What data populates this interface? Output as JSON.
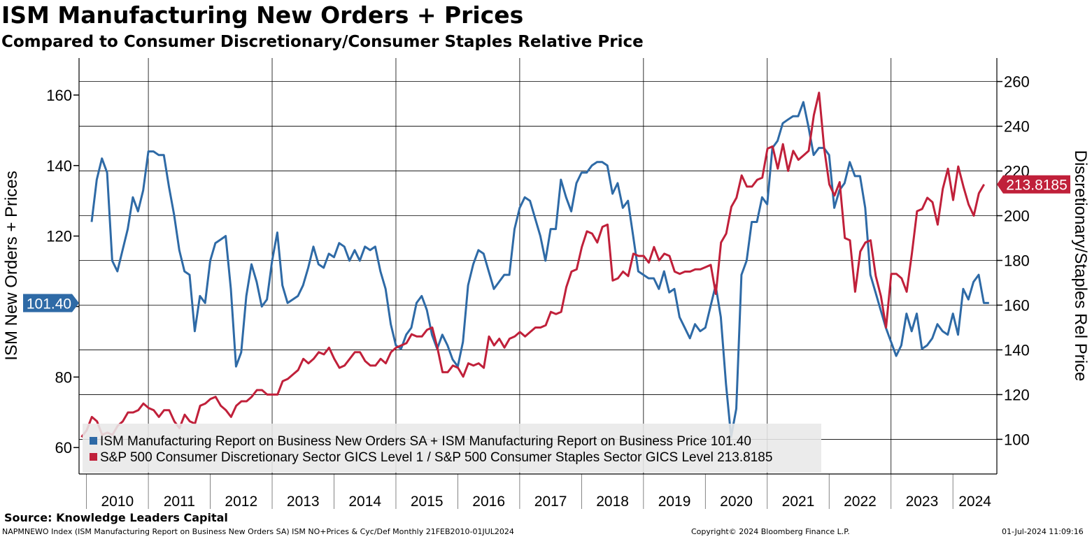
{
  "header": {
    "title": "ISM Manufacturing New Orders + Prices",
    "subtitle": "Compared to Consumer Discretionary/Consumer Staples Relative Price"
  },
  "footer": {
    "source": "Source: Knowledge Leaders Capital",
    "index_info": "NAPMNEWO Index (ISM Manufacturing Report on Business New Orders SA) ISM NO+Prices & Cyc/Def  Monthly 21FEB2010-01JUL2024",
    "copyright": "Copyright© 2024 Bloomberg Finance L.P.",
    "timestamp": "01-Jul-2024 11:09:16"
  },
  "colors": {
    "series1": "#2e6aa6",
    "series2": "#c0203a",
    "grid": "#000000",
    "legend_bg": "#e8e8e8"
  },
  "chart_data": {
    "type": "line",
    "x_range": [
      2009.88,
      2024.71
    ],
    "x_ticks": [
      "2010",
      "2011",
      "2012",
      "2013",
      "2014",
      "2015",
      "2016",
      "2017",
      "2018",
      "2019",
      "2020",
      "2021",
      "2022",
      "2023",
      "2024"
    ],
    "y_left": {
      "label": "ISM New Orders + Prices",
      "range": [
        52.5,
        170.5
      ],
      "ticks": [
        60,
        80,
        100,
        120,
        140,
        160
      ]
    },
    "y_right": {
      "label": "Discretionary/Staples Rel Price",
      "range": [
        84.5,
        270.5
      ],
      "ticks": [
        100,
        120,
        140,
        160,
        180,
        200,
        220,
        240,
        260
      ]
    },
    "series": [
      {
        "name": "ISM Manufacturing Report on Business New Orders SA + ISM Manufacturing Report on Business Price",
        "last_value": "101.40",
        "axis": "left",
        "start": 2010.083,
        "step": 0.083333,
        "values": [
          124,
          136,
          142,
          138,
          113,
          110,
          116,
          122,
          131,
          127,
          133,
          144,
          144,
          143,
          143,
          134,
          126,
          116,
          110,
          109,
          93,
          103,
          101,
          113,
          118,
          119,
          120,
          105,
          83,
          87,
          103,
          112,
          107,
          100,
          102,
          113,
          121,
          106,
          101,
          102,
          103,
          106,
          111,
          117,
          112,
          111,
          115,
          114,
          118,
          117,
          113,
          116,
          113,
          117,
          116,
          117,
          110,
          105,
          95,
          89,
          88,
          92,
          94,
          101,
          103,
          99,
          92,
          88,
          92,
          89,
          85,
          83,
          90,
          106,
          112,
          116,
          115,
          110,
          105,
          107,
          109,
          109,
          122,
          128,
          131,
          130,
          125,
          120,
          113,
          122,
          122,
          136,
          131,
          127,
          135,
          138,
          138,
          140,
          141,
          141,
          140,
          132,
          135,
          128,
          130,
          120,
          110,
          109,
          108,
          108,
          105,
          110,
          104,
          105,
          97,
          94,
          91,
          95,
          93,
          94,
          100,
          106,
          97,
          78,
          63,
          71,
          109,
          113,
          124,
          124,
          131,
          129,
          145,
          147,
          152,
          153,
          154,
          154,
          158,
          151,
          143,
          145,
          145,
          143,
          128,
          133,
          135,
          141,
          137,
          137,
          128,
          109,
          104,
          99,
          94,
          90,
          86,
          89,
          98,
          93,
          98,
          88,
          89,
          91,
          95,
          93,
          92,
          98,
          92,
          105,
          102,
          107,
          109,
          101,
          101
        ]
      },
      {
        "name": "S&P 500 Consumer Discretionary Sector GICS Level 1 / S&P 500 Consumer Staples Sector GICS Level",
        "last_value": "213.8185",
        "axis": "right",
        "start": 2009.92,
        "step": 0.083333,
        "values": [
          101,
          104,
          110,
          108,
          102,
          103,
          102,
          106,
          108,
          112,
          112,
          113,
          116,
          114,
          113,
          110,
          113,
          113,
          108,
          105,
          111,
          108,
          107,
          115,
          116,
          118,
          119,
          115,
          113,
          110,
          115,
          117,
          117,
          119,
          122,
          122,
          120,
          120,
          120,
          126,
          127,
          129,
          131,
          136,
          134,
          136,
          139,
          138,
          141,
          136,
          132,
          133,
          136,
          139,
          139,
          135,
          133,
          133,
          136,
          134,
          139,
          141,
          142,
          143,
          147,
          146,
          146,
          149,
          150,
          141,
          130,
          130,
          133,
          132,
          128,
          134,
          133,
          134,
          132,
          146,
          142,
          145,
          141,
          145,
          146,
          148,
          146,
          148,
          150,
          150,
          151,
          157,
          156,
          157,
          168,
          175,
          176,
          186,
          193,
          192,
          188,
          195,
          196,
          171,
          172,
          175,
          173,
          183,
          182,
          182,
          179,
          186,
          180,
          183,
          182,
          175,
          174,
          175,
          175,
          176,
          176,
          177,
          178,
          165,
          188,
          192,
          204,
          208,
          218,
          213,
          213,
          216,
          217,
          230,
          231,
          221,
          232,
          220,
          229,
          225,
          227,
          229,
          245,
          255,
          230,
          214,
          209,
          215,
          190,
          189,
          166,
          184,
          188,
          189,
          173,
          164,
          150,
          174,
          174,
          172,
          166,
          183,
          202,
          203,
          208,
          206,
          196,
          212,
          221,
          207,
          222,
          213,
          205,
          200,
          210,
          214
        ]
      }
    ]
  }
}
